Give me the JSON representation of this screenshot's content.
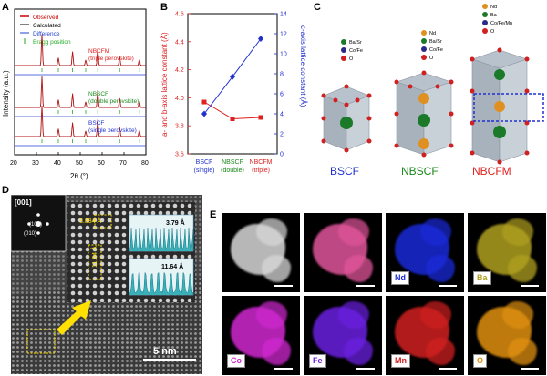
{
  "panels": {
    "a": "A",
    "b": "B",
    "c": "C",
    "d": "D",
    "e": "E"
  },
  "xrd": {
    "legend": [
      {
        "label": "Observed",
        "color": "#cc0000"
      },
      {
        "label": "Calculated",
        "color": "#000000"
      },
      {
        "label": "Difference",
        "color": "#1f3fd0"
      },
      {
        "label": "Bragg position",
        "color": "#22aa22"
      }
    ],
    "samples": [
      {
        "name": "NBCFM",
        "desc": "(triple perovskite)",
        "color": "#e02020"
      },
      {
        "name": "NBSCF",
        "desc": "(double perovskite)",
        "color": "#1a8a1a"
      },
      {
        "name": "BSCF",
        "desc": "(single perovskite)",
        "color": "#2030d0"
      }
    ],
    "ylabel": "Intensity (a.u.)",
    "xlabel": "2θ (°)",
    "xticks": [
      "20",
      "30",
      "40",
      "50",
      "60",
      "70",
      "80"
    ]
  },
  "chart_data": {
    "type": "line",
    "categories": [
      "BSCF (single)",
      "NBSCF (double)",
      "NBCFM (triple)"
    ],
    "series": [
      {
        "name": "a- and b-axis lattice constant (Å)",
        "values": [
          3.97,
          3.85,
          3.86
        ],
        "color": "#e02020",
        "marker": "square"
      },
      {
        "name": "c-axis lattice constant (Å)",
        "values": [
          4.0,
          7.7,
          11.5
        ],
        "color": "#2030d0",
        "marker": "diamond"
      }
    ],
    "ylabel_left": "a- and b-axis lattice constant (Å)",
    "ylabel_right": "c-axis lattice constant (Å)",
    "ylim_left": [
      3.6,
      4.6
    ],
    "ylim_right": [
      0,
      14
    ],
    "yticks_left": [
      "3.6",
      "3.8",
      "4.0",
      "4.2",
      "4.4",
      "4.6"
    ],
    "yticks_right": [
      "0",
      "2",
      "4",
      "6",
      "8",
      "10",
      "12",
      "14"
    ],
    "category_labels": [
      {
        "line1": "BSCF",
        "line2": "(single)",
        "color": "#2030d0"
      },
      {
        "line1": "NBSCF",
        "line2": "(double)",
        "color": "#1a8a1a"
      },
      {
        "line1": "NBCFM",
        "line2": "(triple)",
        "color": "#e02020"
      }
    ]
  },
  "structures": {
    "names": [
      {
        "label": "BSCF",
        "color": "#2030d0"
      },
      {
        "label": "NBSCF",
        "color": "#1a8a1a"
      },
      {
        "label": "NBCFM",
        "color": "#e02020"
      }
    ],
    "legends": [
      [
        {
          "label": "Ba/Sr",
          "color": "#1a7a2a"
        },
        {
          "label": "Co/Fe",
          "color": "#2a2a8a"
        },
        {
          "label": "O",
          "color": "#d02020"
        }
      ],
      [
        {
          "label": "Nd",
          "color": "#e09020"
        },
        {
          "label": "Ba/Sr",
          "color": "#1a7a2a"
        },
        {
          "label": "Co/Fe",
          "color": "#2a2a8a"
        },
        {
          "label": "O",
          "color": "#d02020"
        }
      ],
      [
        {
          "label": "Nd",
          "color": "#e09020"
        },
        {
          "label": "Ba",
          "color": "#1a7a2a"
        },
        {
          "label": "Co/Fe/Mn",
          "color": "#2a2a8a"
        },
        {
          "label": "O",
          "color": "#d02020"
        }
      ]
    ]
  },
  "tem": {
    "zone": "[001]",
    "spot1": "(100)",
    "spot2": "(010)",
    "d1": "3.884 Å",
    "d2": "11.64 Å",
    "inset1": "3.79 Å",
    "inset2": "11.64 Å",
    "scalebar": "5 nm"
  },
  "eds": {
    "tiles": [
      {
        "label": "",
        "color": "#d8d8d8"
      },
      {
        "label": "",
        "color": "#e0559a"
      },
      {
        "label": "Nd",
        "color": "#1a2ad8",
        "textcolor": "#1a2ad8"
      },
      {
        "label": "Ba",
        "color": "#b0a020",
        "textcolor": "#b0a020"
      },
      {
        "label": "Co",
        "color": "#d028d0",
        "textcolor": "#d028d0"
      },
      {
        "label": "Fe",
        "color": "#6a20e0",
        "textcolor": "#6a20e0"
      },
      {
        "label": "Mn",
        "color": "#d02020",
        "textcolor": "#d02020"
      },
      {
        "label": "O",
        "color": "#e09010",
        "textcolor": "#e09010"
      }
    ]
  }
}
